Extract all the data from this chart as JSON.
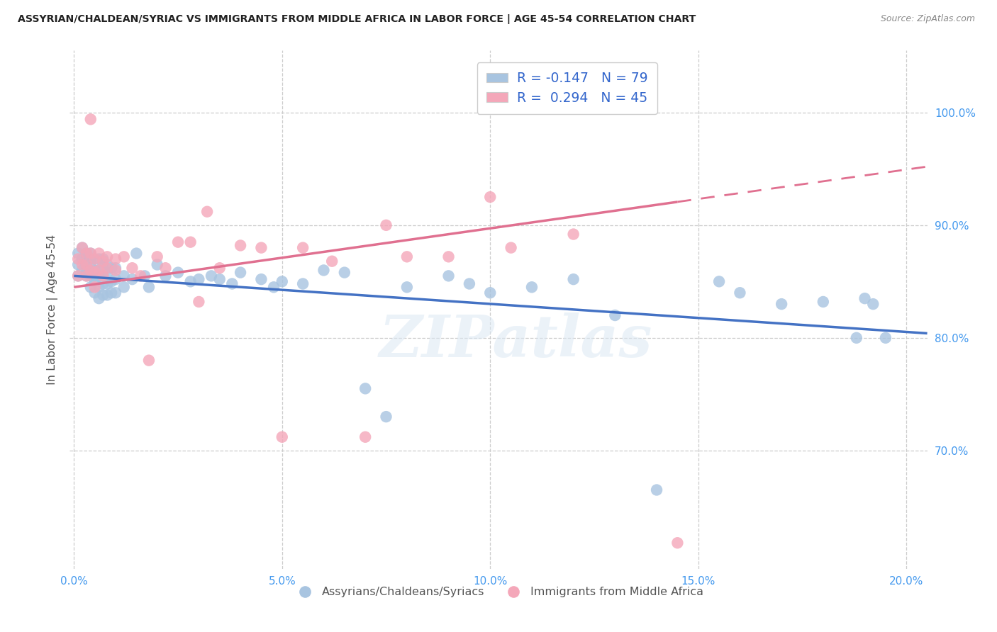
{
  "title": "ASSYRIAN/CHALDEAN/SYRIAC VS IMMIGRANTS FROM MIDDLE AFRICA IN LABOR FORCE | AGE 45-54 CORRELATION CHART",
  "source_text": "Source: ZipAtlas.com",
  "ylabel": "In Labor Force | Age 45-54",
  "xlabel_ticks": [
    "0.0%",
    "5.0%",
    "10.0%",
    "15.0%",
    "20.0%"
  ],
  "xlabel_vals": [
    0.0,
    0.05,
    0.1,
    0.15,
    0.2
  ],
  "ylabel_ticks": [
    "70.0%",
    "80.0%",
    "90.0%",
    "100.0%"
  ],
  "ylabel_vals": [
    0.7,
    0.8,
    0.9,
    1.0
  ],
  "xlim": [
    -0.001,
    0.205
  ],
  "ylim": [
    0.595,
    1.055
  ],
  "blue_R": -0.147,
  "blue_N": 79,
  "pink_R": 0.294,
  "pink_N": 45,
  "blue_color": "#a8c4e0",
  "pink_color": "#f4a7b9",
  "blue_line_color": "#4472c4",
  "pink_line_color": "#e07090",
  "legend_blue_label_r": "R = ",
  "legend_blue_r_val": "-0.147",
  "legend_blue_n": "N = 79",
  "legend_pink_label_r": "R =  ",
  "legend_pink_r_val": "0.294",
  "legend_pink_n": "N = 45",
  "watermark": "ZIPatlas",
  "blue_line_x0": 0.0,
  "blue_line_y0": 0.855,
  "blue_line_x1": 0.205,
  "blue_line_y1": 0.804,
  "pink_line_x0": 0.0,
  "pink_line_y0": 0.845,
  "pink_line_x1": 0.205,
  "pink_line_y1": 0.952,
  "blue_x": [
    0.001,
    0.001,
    0.001,
    0.002,
    0.002,
    0.002,
    0.003,
    0.003,
    0.003,
    0.003,
    0.004,
    0.004,
    0.004,
    0.004,
    0.004,
    0.005,
    0.005,
    0.005,
    0.005,
    0.005,
    0.006,
    0.006,
    0.006,
    0.006,
    0.006,
    0.007,
    0.007,
    0.007,
    0.007,
    0.007,
    0.008,
    0.008,
    0.008,
    0.008,
    0.009,
    0.009,
    0.009,
    0.01,
    0.01,
    0.01,
    0.012,
    0.012,
    0.014,
    0.015,
    0.017,
    0.018,
    0.02,
    0.022,
    0.025,
    0.028,
    0.03,
    0.033,
    0.035,
    0.038,
    0.04,
    0.045,
    0.048,
    0.05,
    0.055,
    0.06,
    0.065,
    0.07,
    0.075,
    0.08,
    0.09,
    0.095,
    0.1,
    0.11,
    0.12,
    0.13,
    0.14,
    0.155,
    0.16,
    0.17,
    0.18,
    0.188,
    0.19,
    0.192,
    0.195
  ],
  "blue_y": [
    0.875,
    0.865,
    0.855,
    0.88,
    0.87,
    0.86,
    0.875,
    0.86,
    0.87,
    0.855,
    0.87,
    0.865,
    0.855,
    0.845,
    0.875,
    0.87,
    0.86,
    0.855,
    0.84,
    0.85,
    0.87,
    0.86,
    0.855,
    0.845,
    0.835,
    0.87,
    0.865,
    0.855,
    0.848,
    0.838,
    0.865,
    0.858,
    0.848,
    0.838,
    0.862,
    0.85,
    0.84,
    0.862,
    0.852,
    0.84,
    0.855,
    0.845,
    0.852,
    0.875,
    0.855,
    0.845,
    0.865,
    0.855,
    0.858,
    0.85,
    0.852,
    0.855,
    0.852,
    0.848,
    0.858,
    0.852,
    0.845,
    0.85,
    0.848,
    0.86,
    0.858,
    0.755,
    0.73,
    0.845,
    0.855,
    0.848,
    0.84,
    0.845,
    0.852,
    0.82,
    0.665,
    0.85,
    0.84,
    0.83,
    0.832,
    0.8,
    0.835,
    0.83,
    0.8
  ],
  "pink_x": [
    0.001,
    0.001,
    0.002,
    0.002,
    0.003,
    0.003,
    0.003,
    0.004,
    0.004,
    0.004,
    0.005,
    0.005,
    0.005,
    0.006,
    0.006,
    0.007,
    0.007,
    0.008,
    0.008,
    0.01,
    0.01,
    0.012,
    0.014,
    0.016,
    0.018,
    0.02,
    0.022,
    0.025,
    0.028,
    0.03,
    0.032,
    0.035,
    0.04,
    0.045,
    0.05,
    0.055,
    0.062,
    0.07,
    0.075,
    0.08,
    0.09,
    0.1,
    0.105,
    0.12,
    0.145
  ],
  "pink_y": [
    0.87,
    0.855,
    0.88,
    0.865,
    0.875,
    0.865,
    0.855,
    0.994,
    0.875,
    0.86,
    0.87,
    0.858,
    0.845,
    0.875,
    0.86,
    0.868,
    0.855,
    0.872,
    0.862,
    0.87,
    0.86,
    0.872,
    0.862,
    0.855,
    0.78,
    0.872,
    0.862,
    0.885,
    0.885,
    0.832,
    0.912,
    0.862,
    0.882,
    0.88,
    0.712,
    0.88,
    0.868,
    0.712,
    0.9,
    0.872,
    0.872,
    0.925,
    0.88,
    0.892,
    0.618
  ]
}
